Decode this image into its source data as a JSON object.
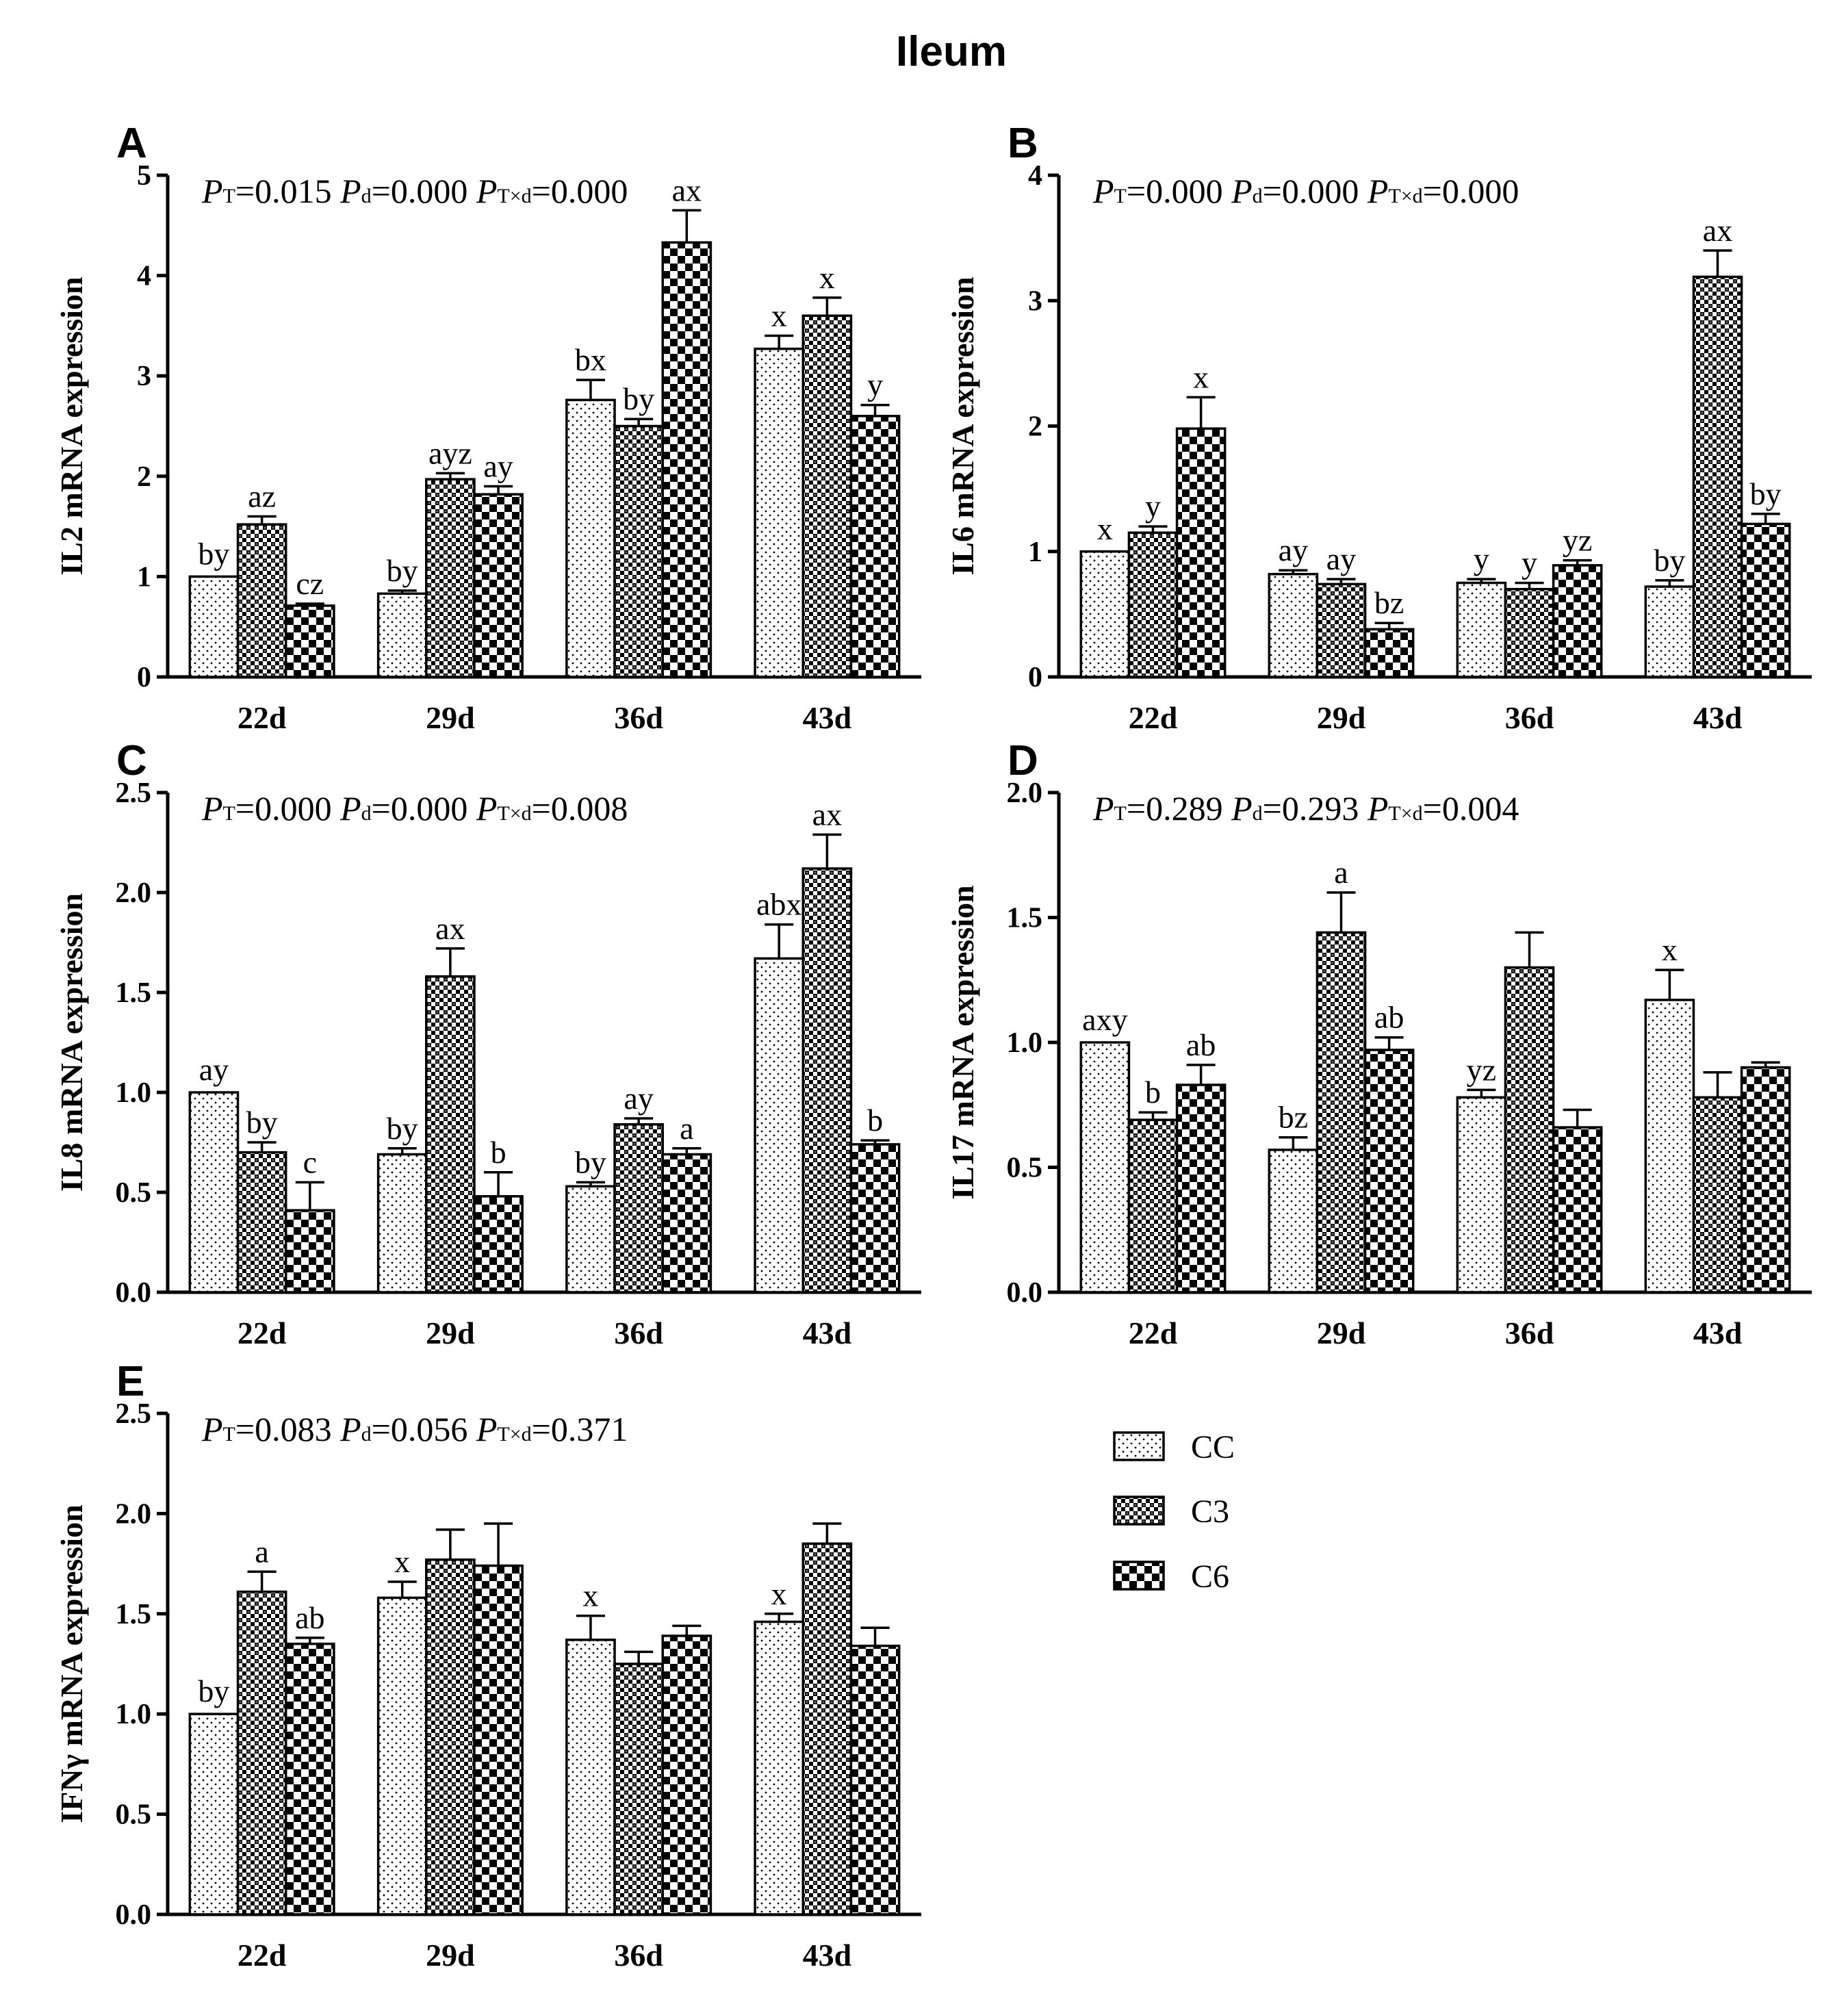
{
  "figure_title": "Ileum",
  "legend": [
    {
      "group": "CC",
      "label": "CC",
      "pattern": "dots"
    },
    {
      "group": "C3",
      "label": "C3",
      "pattern": "fine-check"
    },
    {
      "group": "C6",
      "label": "C6",
      "pattern": "coarse-check"
    }
  ],
  "colors": {
    "bar_fill": "#ffffff",
    "pattern_ink": "#000000",
    "axis": "#000000"
  },
  "chart_data": [
    {
      "id": "A",
      "panel_label": "A",
      "type": "bar",
      "ylabel": "IL2 mRNA expression",
      "ylim": [
        0,
        5
      ],
      "yticks": [
        "0",
        "1",
        "2",
        "3",
        "4",
        "5"
      ],
      "categories": [
        "22d",
        "29d",
        "36d",
        "43d"
      ],
      "stats": {
        "pt": "=0.015",
        "pd": "=0.000",
        "ptd": "=0.000"
      },
      "series": [
        {
          "name": "CC",
          "values": [
            1.0,
            0.83,
            2.76,
            3.27
          ],
          "errors": [
            0.0,
            0.03,
            0.2,
            0.13
          ],
          "labels": [
            "by",
            "by",
            "bx",
            "x"
          ]
        },
        {
          "name": "C3",
          "values": [
            1.52,
            1.97,
            2.5,
            3.6
          ],
          "errors": [
            0.08,
            0.06,
            0.07,
            0.18
          ],
          "labels": [
            "az",
            "ayz",
            "by",
            "x"
          ]
        },
        {
          "name": "C6",
          "values": [
            0.71,
            1.82,
            4.33,
            2.6
          ],
          "errors": [
            0.02,
            0.08,
            0.32,
            0.11
          ],
          "labels": [
            "cz",
            "ay",
            "ax",
            "y"
          ]
        }
      ]
    },
    {
      "id": "B",
      "panel_label": "B",
      "type": "bar",
      "ylabel": "IL6 mRNA expression",
      "ylim": [
        0,
        4
      ],
      "yticks": [
        "0",
        "1",
        "2",
        "3",
        "4"
      ],
      "categories": [
        "22d",
        "29d",
        "36d",
        "43d"
      ],
      "stats": {
        "pt": "=0.000",
        "pd": "=0.000",
        "ptd": "=0.000"
      },
      "series": [
        {
          "name": "CC",
          "values": [
            1.0,
            0.82,
            0.75,
            0.72
          ],
          "errors": [
            0.0,
            0.03,
            0.03,
            0.05
          ],
          "labels": [
            "x",
            "ay",
            "y",
            "by"
          ]
        },
        {
          "name": "C3",
          "values": [
            1.15,
            0.74,
            0.7,
            3.19
          ],
          "errors": [
            0.05,
            0.04,
            0.05,
            0.21
          ],
          "labels": [
            "y",
            "ay",
            "y",
            "ax"
          ]
        },
        {
          "name": "C6",
          "values": [
            1.98,
            0.38,
            0.89,
            1.22
          ],
          "errors": [
            0.25,
            0.05,
            0.04,
            0.08
          ],
          "labels": [
            "x",
            "bz",
            "yz",
            "by"
          ]
        }
      ]
    },
    {
      "id": "C",
      "panel_label": "C",
      "type": "bar",
      "ylabel": "IL8 mRNA expression",
      "ylim": [
        0,
        2.5
      ],
      "yticks": [
        "0.0",
        "0.5",
        "1.0",
        "1.5",
        "2.0",
        "2.5"
      ],
      "categories": [
        "22d",
        "29d",
        "36d",
        "43d"
      ],
      "stats": {
        "pt": "=0.000",
        "pd": "=0.000",
        "ptd": "=0.008"
      },
      "series": [
        {
          "name": "CC",
          "values": [
            1.0,
            0.69,
            0.53,
            1.67
          ],
          "errors": [
            0.0,
            0.03,
            0.02,
            0.17
          ],
          "labels": [
            "ay",
            "by",
            "by",
            "abx"
          ]
        },
        {
          "name": "C3",
          "values": [
            0.7,
            1.58,
            0.84,
            2.12
          ],
          "errors": [
            0.05,
            0.14,
            0.03,
            0.17
          ],
          "labels": [
            "by",
            "ax",
            "ay",
            "ax"
          ]
        },
        {
          "name": "C6",
          "values": [
            0.41,
            0.48,
            0.69,
            0.74
          ],
          "errors": [
            0.14,
            0.12,
            0.03,
            0.02
          ],
          "labels": [
            "c",
            "b",
            "a",
            "b"
          ]
        }
      ]
    },
    {
      "id": "D",
      "panel_label": "D",
      "type": "bar",
      "ylabel": "IL17 mRNA expression",
      "ylim": [
        0,
        2.0
      ],
      "yticks": [
        "0.0",
        "0.5",
        "1.0",
        "1.5",
        "2.0"
      ],
      "categories": [
        "22d",
        "29d",
        "36d",
        "43d"
      ],
      "stats": {
        "pt": "=0.289",
        "pd": "=0.293",
        "ptd": "=0.004"
      },
      "series": [
        {
          "name": "CC",
          "values": [
            1.0,
            0.57,
            0.78,
            1.17
          ],
          "errors": [
            0.0,
            0.05,
            0.03,
            0.12
          ],
          "labels": [
            "axy",
            "bz",
            "yz",
            "x"
          ]
        },
        {
          "name": "C3",
          "values": [
            0.69,
            1.44,
            1.3,
            0.78
          ],
          "errors": [
            0.03,
            0.16,
            0.14,
            0.1
          ],
          "labels": [
            "b",
            "a",
            "",
            ""
          ]
        },
        {
          "name": "C6",
          "values": [
            0.83,
            0.97,
            0.66,
            0.9
          ],
          "errors": [
            0.08,
            0.05,
            0.07,
            0.02
          ],
          "labels": [
            "ab",
            "ab",
            "",
            ""
          ]
        }
      ]
    },
    {
      "id": "E",
      "panel_label": "E",
      "type": "bar",
      "ylabel": "IFNγ mRNA expression",
      "ylim": [
        0,
        2.5
      ],
      "yticks": [
        "0.0",
        "0.5",
        "1.0",
        "1.5",
        "2.0",
        "2.5"
      ],
      "categories": [
        "22d",
        "29d",
        "36d",
        "43d"
      ],
      "stats": {
        "pt": "=0.083",
        "pd": "=0.056",
        "ptd": "=0.371"
      },
      "series": [
        {
          "name": "CC",
          "values": [
            1.0,
            1.58,
            1.37,
            1.46
          ],
          "errors": [
            0.0,
            0.08,
            0.12,
            0.04
          ],
          "labels": [
            "by",
            "x",
            "x",
            "x"
          ]
        },
        {
          "name": "C3",
          "values": [
            1.61,
            1.77,
            1.25,
            1.85
          ],
          "errors": [
            0.1,
            0.15,
            0.06,
            0.1
          ],
          "labels": [
            "a",
            "",
            "",
            ""
          ]
        },
        {
          "name": "C6",
          "values": [
            1.35,
            1.74,
            1.39,
            1.34
          ],
          "errors": [
            0.03,
            0.21,
            0.05,
            0.09
          ],
          "labels": [
            "ab",
            "",
            "",
            ""
          ]
        }
      ]
    }
  ]
}
